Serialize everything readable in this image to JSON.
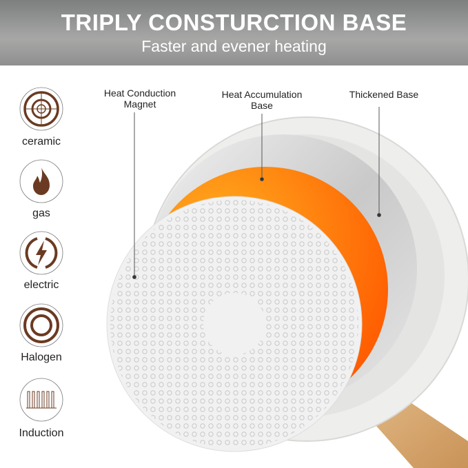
{
  "header": {
    "title": "TRIPLY CONSTURCTION BASE",
    "subtitle": "Faster and evener heating"
  },
  "cooktops": [
    {
      "label": "ceramic",
      "icon": "ceramic-cooktop-icon"
    },
    {
      "label": "gas",
      "icon": "flame-icon"
    },
    {
      "label": "electric",
      "icon": "lightning-icon"
    },
    {
      "label": "Halogen",
      "icon": "halogen-rings-icon"
    },
    {
      "label": "Induction",
      "icon": "induction-coil-icon"
    }
  ],
  "callouts": {
    "magnet": {
      "line1": "Heat Conduction",
      "line2": "Magnet"
    },
    "accumulation": {
      "line1": "Heat Accumulation",
      "line2": "Base"
    },
    "thickened": {
      "line1": "Thickened Base"
    }
  },
  "colors": {
    "icon": "#6b3a22",
    "orange": "#ff7a10",
    "banner": "#8e8f8e"
  }
}
